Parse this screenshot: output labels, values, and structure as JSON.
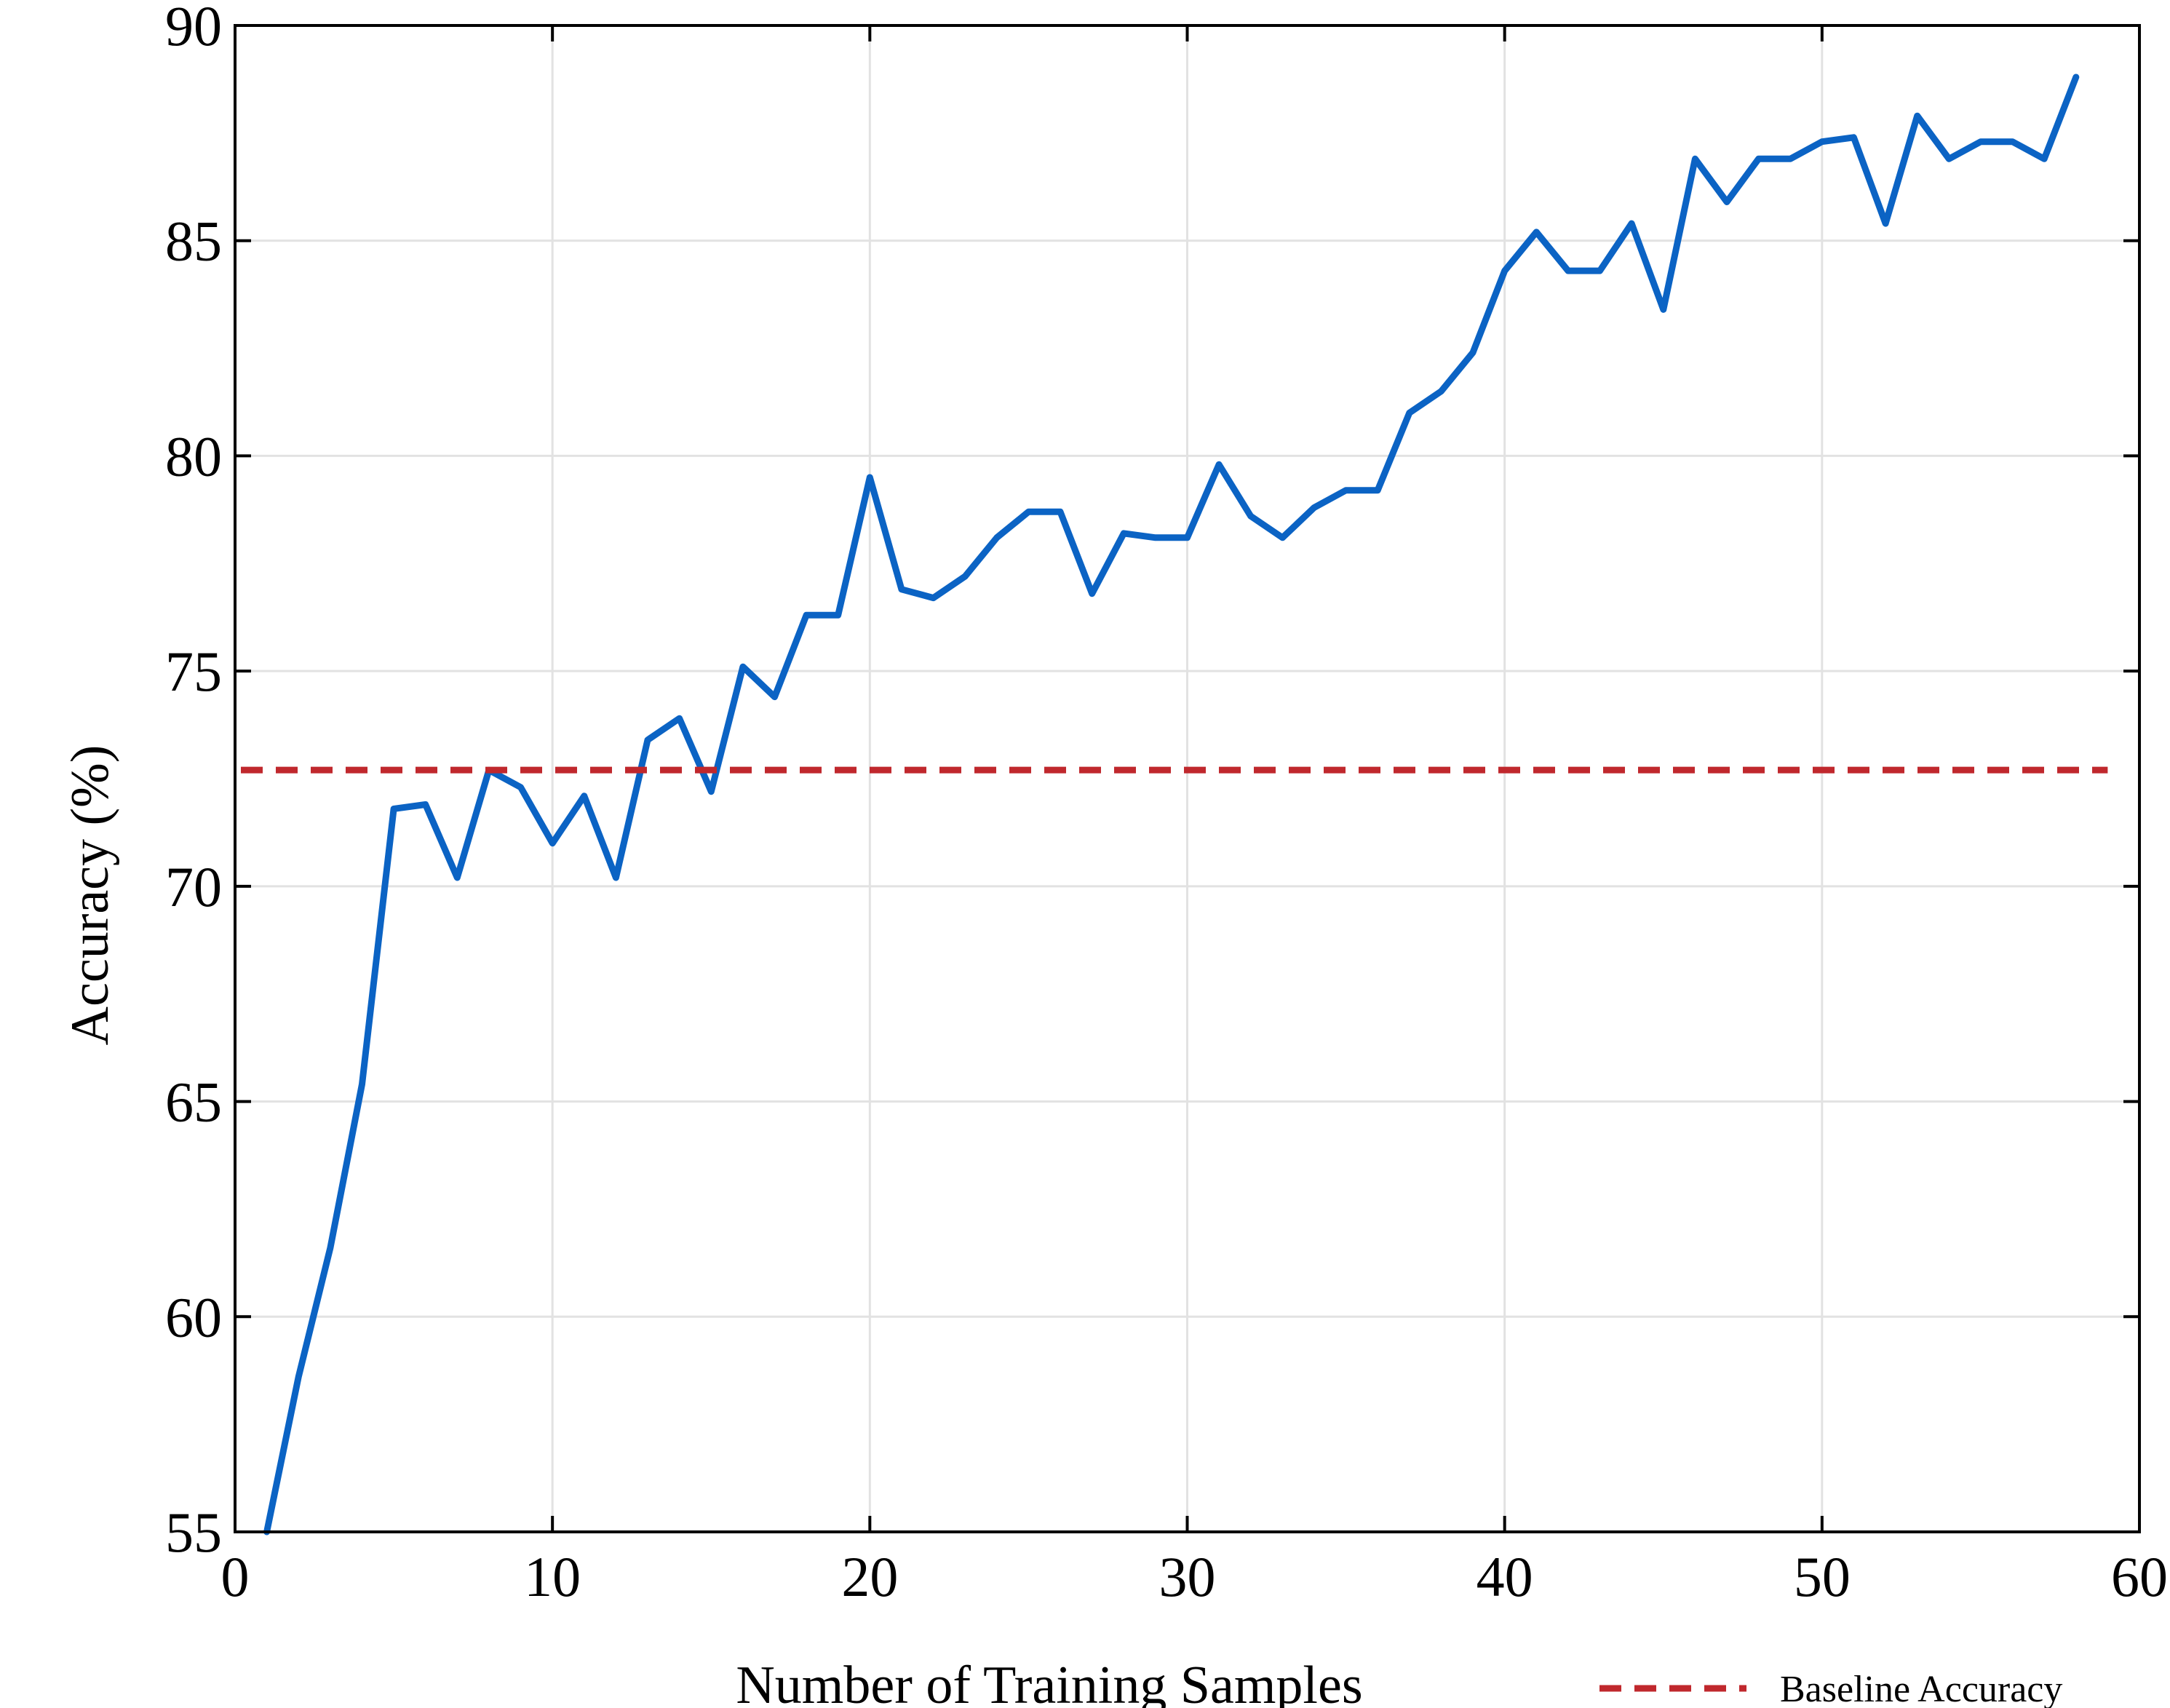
{
  "chart_data": {
    "type": "line",
    "title": "",
    "xlabel": "Number of Training Samples",
    "ylabel": "Accuracy (%)",
    "xlim": [
      0,
      60
    ],
    "ylim": [
      55,
      90
    ],
    "xticks": [
      0,
      10,
      20,
      30,
      40,
      50,
      60
    ],
    "yticks": [
      55,
      60,
      65,
      70,
      75,
      80,
      85,
      90
    ],
    "grid": true,
    "legend_position": "bottom-right",
    "series": [
      {
        "color": "#0b63c4",
        "x": [
          1,
          2,
          3,
          4,
          5,
          6,
          7,
          8,
          9,
          10,
          11,
          12,
          13,
          14,
          15,
          16,
          17,
          18,
          19,
          20,
          21,
          22,
          23,
          24,
          25,
          26,
          27,
          28,
          29,
          30,
          31,
          32,
          33,
          34,
          35,
          36,
          37,
          38,
          39,
          40,
          41,
          42,
          43,
          44,
          45,
          46,
          47,
          48,
          49,
          50,
          51,
          52,
          53,
          54,
          55,
          56,
          57,
          58
        ],
        "y": [
          55.0,
          58.6,
          61.6,
          65.4,
          71.8,
          71.9,
          70.2,
          72.7,
          72.3,
          71.0,
          72.1,
          70.2,
          73.4,
          73.9,
          72.2,
          75.1,
          74.4,
          76.3,
          76.3,
          79.5,
          76.9,
          76.7,
          77.2,
          78.1,
          78.7,
          78.7,
          76.8,
          78.2,
          78.1,
          78.1,
          79.8,
          78.6,
          78.1,
          78.8,
          79.2,
          79.2,
          81.0,
          81.5,
          82.4,
          84.3,
          85.2,
          84.3,
          84.3,
          85.4,
          83.4,
          86.9,
          85.9,
          86.9,
          86.9,
          87.3,
          87.4,
          85.4,
          87.9,
          86.9,
          87.3,
          87.3,
          86.9,
          88.8
        ]
      },
      {
        "name": "Baseline Accuracy",
        "color": "#c0282d",
        "style": "dashed",
        "y_const": 72.7
      }
    ]
  }
}
